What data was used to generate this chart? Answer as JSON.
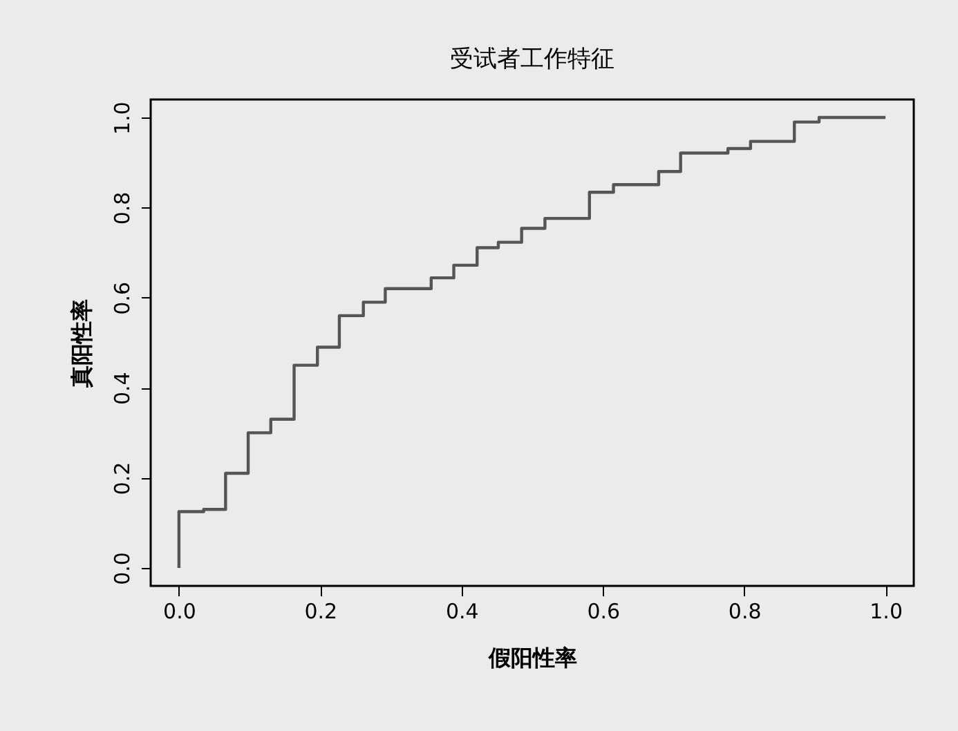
{
  "chart_data": {
    "type": "step",
    "title": "受试者工作特征",
    "xlabel": "假阳性率",
    "ylabel": "真阳性率",
    "x": [
      0,
      0,
      0.035,
      0.066,
      0.098,
      0.13,
      0.163,
      0.196,
      0.227,
      0.261,
      0.292,
      0.357,
      0.389,
      0.422,
      0.452,
      0.485,
      0.518,
      0.581,
      0.615,
      0.679,
      0.71,
      0.777,
      0.809,
      0.871,
      0.906,
      1.0
    ],
    "series": [
      {
        "color": "#555555",
        "values": [
          0,
          0.125,
          0.13,
          0.21,
          0.3,
          0.33,
          0.45,
          0.49,
          0.56,
          0.59,
          0.62,
          0.644,
          0.672,
          0.711,
          0.723,
          0.754,
          0.776,
          0.834,
          0.851,
          0.88,
          0.921,
          0.931,
          0.947,
          0.99,
          1.0,
          1.0
        ]
      }
    ],
    "xlim": [
      -0.04,
      1.04
    ],
    "ylim": [
      -0.04,
      1.04
    ],
    "xticks": [
      {
        "value": 0,
        "label": "0.0"
      },
      0.2,
      0.4,
      0.6,
      0.8,
      {
        "value": 1,
        "label": "1.0"
      }
    ],
    "yticks": [
      {
        "value": 0,
        "label": "0.0"
      },
      0.2,
      0.4,
      0.6,
      0.8,
      {
        "value": 1,
        "label": "1.0"
      }
    ],
    "grid": false,
    "marker": "none",
    "line_style": "solid"
  }
}
